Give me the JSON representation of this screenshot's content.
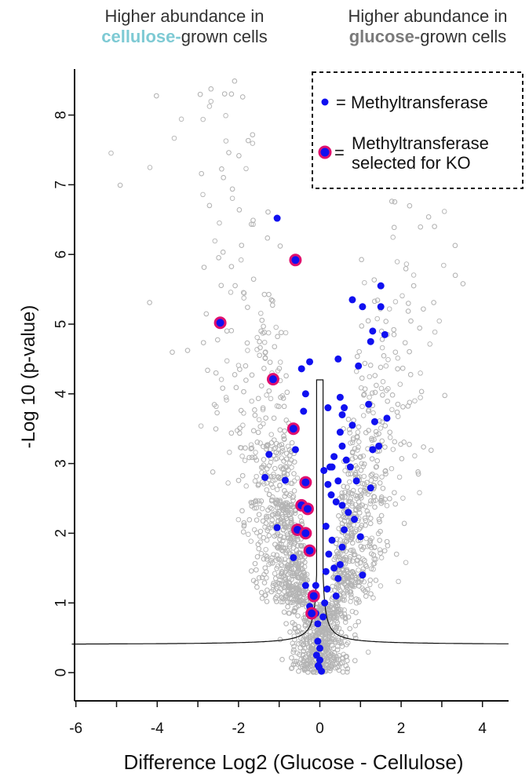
{
  "header": {
    "left_line1": "Higher abundance in",
    "left_bold": "cellulose-",
    "left_rest": "grown cells",
    "right_line1": "Higher abundance in",
    "right_bold": "glucose-",
    "right_rest": "grown cells"
  },
  "colors": {
    "cellulose": "#7ecad4",
    "glucose": "#7a7a7a",
    "background_point": "#b4b4b4",
    "methyltransferase": "#1010f0",
    "ko_ring": "#e0106e"
  },
  "chart_data": {
    "type": "scatter",
    "xlabel": "Difference Log2 (Glucose - Cellulose)",
    "ylabel": "-Log 10 (p-value)",
    "xlim": [
      -6.1,
      4.7
    ],
    "ylim": [
      -0.3,
      8.7
    ],
    "xticks": [
      -6,
      -4,
      -2,
      0,
      2,
      4
    ],
    "yticks": [
      0,
      1,
      2,
      3,
      4,
      5,
      6,
      7,
      8
    ],
    "legend_position": "top-right",
    "legend": [
      {
        "marker": "filled-circle",
        "label": "= Methyltransferase"
      },
      {
        "marker": "ringed-circle",
        "label_line1": "Methyltransferase",
        "label_line2": "selected for KO",
        "prefix": "="
      }
    ],
    "background_proteins": {
      "description_count": 3000,
      "y_max_observed": 8.55,
      "x_range_observed": [
        -5.6,
        3.8
      ]
    },
    "series": [
      {
        "name": "Methyltransferase",
        "points": [
          [
            -1.05,
            6.52
          ],
          [
            0.45,
            4.5
          ],
          [
            -0.25,
            4.46
          ],
          [
            -0.45,
            4.36
          ],
          [
            -0.35,
            4.0
          ],
          [
            -0.4,
            3.75
          ],
          [
            -0.6,
            3.2
          ],
          [
            -1.25,
            3.13
          ],
          [
            -1.35,
            2.8
          ],
          [
            -0.85,
            2.76
          ],
          [
            -1.05,
            2.08
          ],
          [
            -0.65,
            1.65
          ],
          [
            -0.35,
            1.25
          ],
          [
            -0.25,
            0.95
          ],
          [
            -0.1,
            1.25
          ],
          [
            -0.1,
            0.85
          ],
          [
            -0.05,
            0.7
          ],
          [
            -0.05,
            0.45
          ],
          [
            0.0,
            0.35
          ],
          [
            -0.08,
            0.25
          ],
          [
            0.0,
            0.18
          ],
          [
            -0.02,
            0.08
          ],
          [
            0.04,
            0.02
          ],
          [
            -0.04,
            0.1
          ],
          [
            0.08,
            0.8
          ],
          [
            0.12,
            1.0
          ],
          [
            0.15,
            1.45
          ],
          [
            0.18,
            1.2
          ],
          [
            0.22,
            1.7
          ],
          [
            0.3,
            1.9
          ],
          [
            0.35,
            1.5
          ],
          [
            0.4,
            1.1
          ],
          [
            0.45,
            1.35
          ],
          [
            0.5,
            1.55
          ],
          [
            0.55,
            1.8
          ],
          [
            0.6,
            2.05
          ],
          [
            0.7,
            2.3
          ],
          [
            0.55,
            2.4
          ],
          [
            0.4,
            2.45
          ],
          [
            0.28,
            2.55
          ],
          [
            0.2,
            2.7
          ],
          [
            0.3,
            2.95
          ],
          [
            0.45,
            2.75
          ],
          [
            0.35,
            3.1
          ],
          [
            0.55,
            3.25
          ],
          [
            0.65,
            3.05
          ],
          [
            0.5,
            3.45
          ],
          [
            0.55,
            3.7
          ],
          [
            0.5,
            3.95
          ],
          [
            0.6,
            3.8
          ],
          [
            0.8,
            3.55
          ],
          [
            0.75,
            2.95
          ],
          [
            0.9,
            2.75
          ],
          [
            0.85,
            2.2
          ],
          [
            1.0,
            1.95
          ],
          [
            1.05,
            1.4
          ],
          [
            0.2,
            3.8
          ],
          [
            0.1,
            2.9
          ],
          [
            0.15,
            2.1
          ],
          [
            0.25,
            2.95
          ],
          [
            1.2,
            3.85
          ],
          [
            1.35,
            3.6
          ],
          [
            1.3,
            3.2
          ],
          [
            1.45,
            3.25
          ],
          [
            1.65,
            3.65
          ],
          [
            1.25,
            2.65
          ],
          [
            1.05,
            5.25
          ],
          [
            0.8,
            5.35
          ],
          [
            1.25,
            4.75
          ],
          [
            1.3,
            4.9
          ],
          [
            1.5,
            5.25
          ],
          [
            1.5,
            5.55
          ],
          [
            1.6,
            4.85
          ],
          [
            0.95,
            4.4
          ],
          [
            1.3,
            3.2
          ]
        ]
      },
      {
        "name": "Methyltransferase selected for KO",
        "points": [
          [
            -2.45,
            5.02
          ],
          [
            -0.6,
            5.92
          ],
          [
            -1.15,
            4.21
          ],
          [
            -0.65,
            3.5
          ],
          [
            -0.35,
            2.73
          ],
          [
            -0.45,
            2.4
          ],
          [
            -0.3,
            2.35
          ],
          [
            -0.55,
            2.05
          ],
          [
            -0.35,
            2.0
          ],
          [
            -0.25,
            1.75
          ],
          [
            -0.15,
            1.1
          ],
          [
            -0.2,
            0.85
          ]
        ]
      }
    ],
    "threshold_curve": {
      "description": "significance cutoff curve",
      "s0_asymptote_y": 0.4,
      "peak_y": 4.2,
      "x_inner": [
        -0.08,
        0.08
      ]
    }
  }
}
